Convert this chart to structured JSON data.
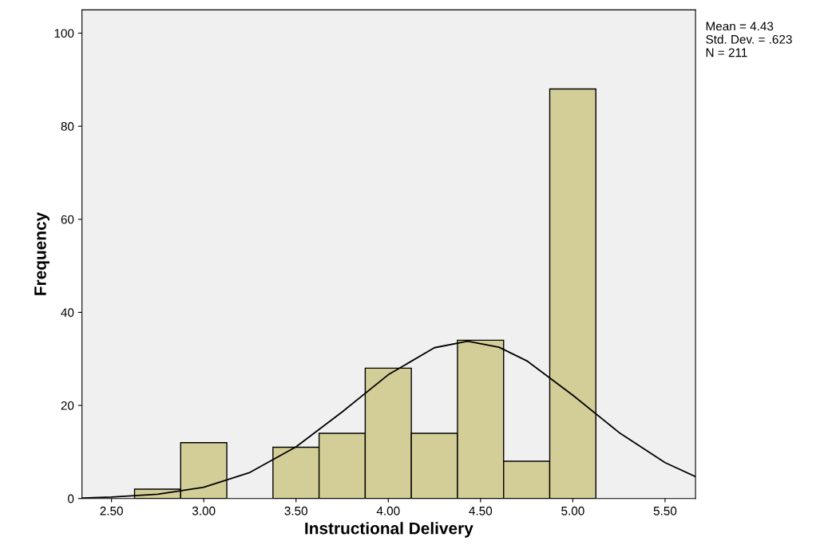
{
  "chart_data": {
    "type": "histogram",
    "xlabel": "Instructional Delivery",
    "ylabel": "Frequency",
    "series": [
      {
        "color": "#d3ce97",
        "bins": [
          2.625,
          2.875,
          3.125,
          3.375,
          3.625,
          3.875,
          4.125,
          4.375,
          4.625,
          4.875,
          5.125
        ],
        "values": [
          2,
          12,
          0,
          11,
          14,
          28,
          14,
          34,
          8,
          88
        ]
      },
      {
        "type": "line",
        "color": "#000000",
        "x": [
          2.34,
          2.5,
          2.75,
          3.0,
          3.25,
          3.5,
          3.75,
          4.0,
          4.25,
          4.43,
          4.6,
          4.75,
          5.0,
          5.25,
          5.5,
          5.665
        ],
        "values": [
          0.1,
          0.3,
          0.9,
          2.4,
          5.6,
          11.1,
          18.6,
          26.6,
          32.4,
          33.8,
          32.5,
          29.6,
          22.2,
          14.2,
          7.7,
          4.7
        ]
      }
    ],
    "xlim": [
      2.34,
      5.665
    ],
    "ylim": [
      0,
      105
    ],
    "xticks": [
      {
        "value": 2.5,
        "label": "2.50"
      },
      {
        "value": 3.0,
        "label": "3.00"
      },
      {
        "value": 3.5,
        "label": "3.50"
      },
      {
        "value": 4.0,
        "label": "4.00"
      },
      {
        "value": 4.5,
        "label": "4.50"
      },
      {
        "value": 5.0,
        "label": "5.00"
      },
      {
        "value": 5.5,
        "label": "5.50"
      }
    ],
    "yticks": [
      0,
      20,
      40,
      60,
      80,
      100
    ],
    "grid": false,
    "legend": false,
    "annotations": [
      "Mean = 4.43",
      "Std. Dev. = .623",
      "N = 211"
    ]
  }
}
